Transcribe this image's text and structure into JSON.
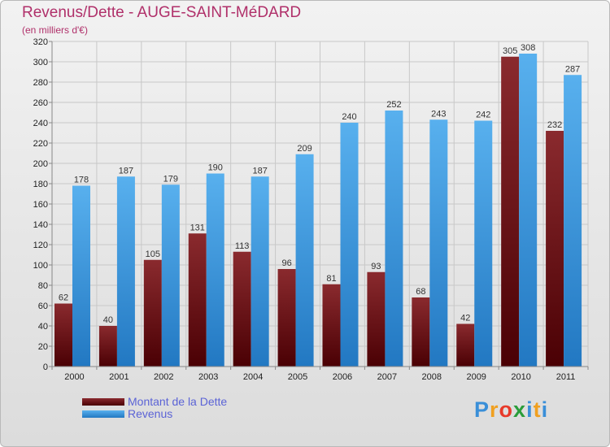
{
  "chart_data": {
    "type": "bar",
    "title": "Revenus/Dette - AUGE-SAINT-MéDARD",
    "subtitle": "(en milliers d'€)",
    "categories": [
      "2000",
      "2001",
      "2002",
      "2003",
      "2004",
      "2005",
      "2006",
      "2007",
      "2008",
      "2009",
      "2010",
      "2011"
    ],
    "series": [
      {
        "name": "Montant de la Dette",
        "color": "#7a1a1d",
        "values": [
          62,
          40,
          105,
          131,
          113,
          96,
          81,
          93,
          68,
          42,
          305,
          232
        ]
      },
      {
        "name": "Revenus",
        "color": "#3d98dd",
        "values": [
          178,
          187,
          179,
          190,
          187,
          209,
          240,
          252,
          243,
          242,
          308,
          287
        ]
      }
    ],
    "ylim": [
      0,
      320
    ],
    "yticks": [
      0,
      20,
      40,
      60,
      80,
      100,
      120,
      140,
      160,
      180,
      200,
      220,
      240,
      260,
      280,
      300,
      320
    ],
    "grid": true,
    "legend": "bottom-left"
  },
  "logo": {
    "letters": [
      {
        "ch": "P",
        "color": "#3a8fd8"
      },
      {
        "ch": "r",
        "color": "#f0a020"
      },
      {
        "ch": "o",
        "color": "#e83a2a"
      },
      {
        "ch": "x",
        "color": "#2a9d3a"
      },
      {
        "ch": "i",
        "color": "#3a8fd8"
      },
      {
        "ch": "t",
        "color": "#f0a020"
      },
      {
        "ch": "i",
        "color": "#3a8fd8"
      }
    ]
  }
}
